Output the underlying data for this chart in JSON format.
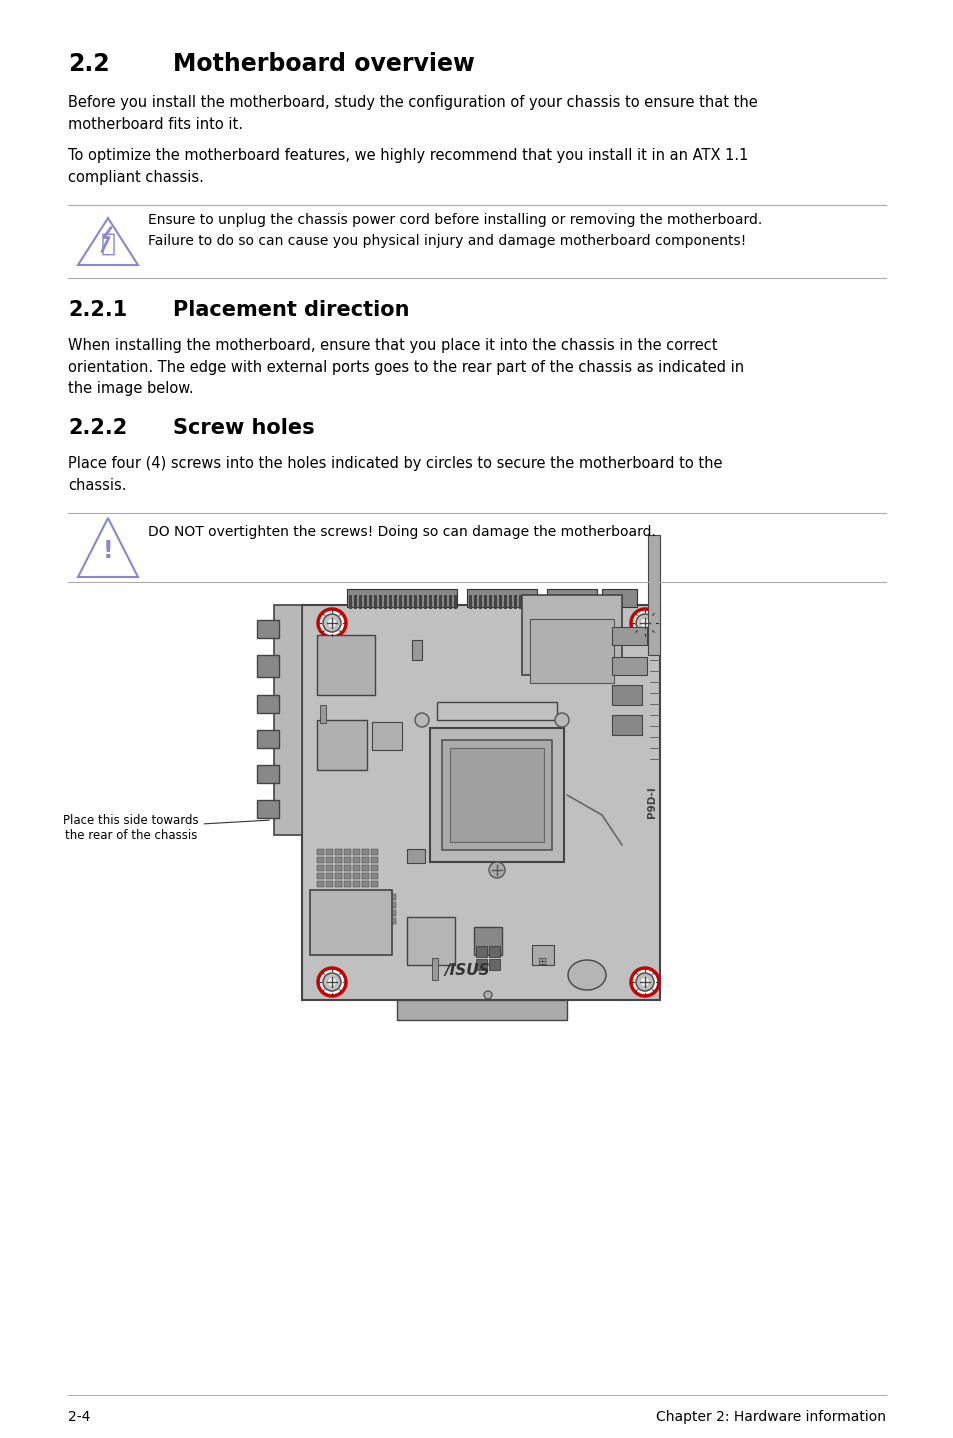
{
  "bg_color": "#ffffff",
  "title_22": "2.2",
  "title_22_text": "Motherboard overview",
  "para1": "Before you install the motherboard, study the configuration of your chassis to ensure that the\nmotherboard fits into it.",
  "para2": "To optimize the motherboard features, we highly recommend that you install it in an ATX 1.1\ncompliant chassis.",
  "warning1": "Ensure to unplug the chassis power cord before installing or removing the motherboard.\nFailure to do so can cause you physical injury and damage motherboard components!",
  "title_221": "2.2.1",
  "title_221_text": "Placement direction",
  "para3": "When installing the motherboard, ensure that you place it into the chassis in the correct\norientation. The edge with external ports goes to the rear part of the chassis as indicated in\nthe image below.",
  "title_222": "2.2.2",
  "title_222_text": "Screw holes",
  "para4": "Place four (4) screws into the holes indicated by circles to secure the motherboard to the\nchassis.",
  "warning2": "DO NOT overtighten the screws! Doing so can damage the motherboard.",
  "annotation": "Place this side towards\nthe rear of the chassis",
  "footer_left": "2-4",
  "footer_right": "Chapter 2: Hardware information",
  "mb_fill": "#c0c0c0",
  "mb_edge": "#444444",
  "screw_color": "#cc0000",
  "text_color": "#000000",
  "heading_color": "#000000",
  "warn_line_color": "#aaaaaa",
  "icon_color": "#8888cc"
}
